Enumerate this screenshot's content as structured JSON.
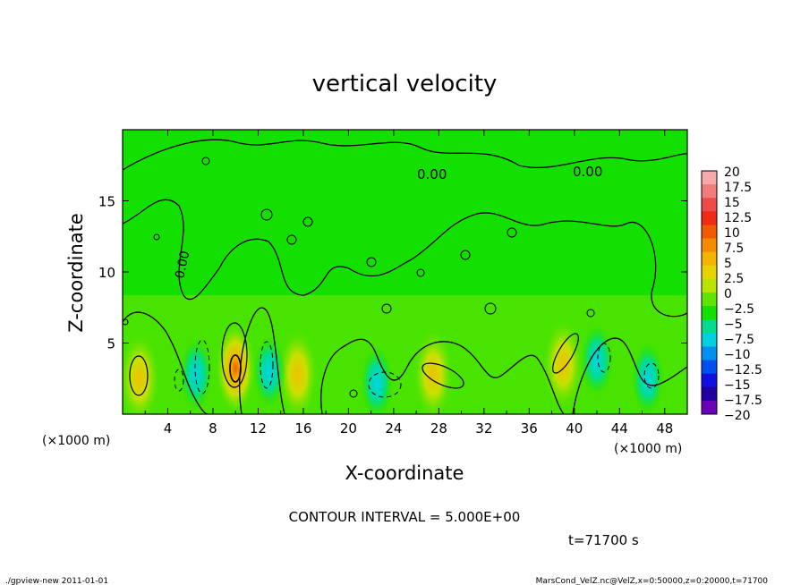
{
  "chart_data": {
    "type": "heatmap",
    "title": "vertical velocity",
    "xlabel": "X-coordinate",
    "ylabel": "Z-coordinate",
    "x_unit_left": "(×1000 m)",
    "x_unit_right": "(×1000 m)",
    "xlim": [
      0,
      50
    ],
    "ylim": [
      0,
      20
    ],
    "x_ticks": [
      4,
      8,
      12,
      16,
      20,
      24,
      28,
      32,
      36,
      40,
      44,
      48
    ],
    "y_ticks": [
      5,
      10,
      15
    ],
    "colorbar_labels": [
      "20",
      "17.5",
      "15",
      "12.5",
      "10",
      "7.5",
      "5",
      "2.5",
      "0",
      "−2.5",
      "−5",
      "−7.5",
      "−10",
      "−12.5",
      "−15",
      "−17.5",
      "−20"
    ],
    "colorbar_colors": [
      "#f7a8a8",
      "#f27b7b",
      "#ee4a4a",
      "#f02a14",
      "#f25a00",
      "#f58c00",
      "#f5b400",
      "#e8d200",
      "#b8e400",
      "#5ee600",
      "#14e000",
      "#00dc8c",
      "#00d0e0",
      "#0090f0",
      "#0050f0",
      "#1010e0",
      "#2000a0",
      "#6a00b8"
    ],
    "contour_labels": [
      "0.00",
      "0.00",
      "0.00"
    ],
    "contour_interval": "CONTOUR INTERVAL = 5.000E+00",
    "time": "t=71700 s",
    "footer_left": "./gpview-new  2011-01-01",
    "footer_right": "MarsCond_VelZ.nc@VelZ,x=0:50000,z=0:20000,t=71700",
    "updraft_cells": [
      {
        "x": 1.5,
        "z": 2.5,
        "value": 7.5
      },
      {
        "x": 10,
        "z": 3.2,
        "value": 12.5
      },
      {
        "x": 15.5,
        "z": 2.8,
        "value": 5
      },
      {
        "x": 27.5,
        "z": 2.8,
        "value": 5
      },
      {
        "x": 39,
        "z": 3.5,
        "value": 7.5
      }
    ],
    "downdraft_cells": [
      {
        "x": 6.5,
        "z": 2.8,
        "value": -7.5
      },
      {
        "x": 13,
        "z": 3,
        "value": -7.5
      },
      {
        "x": 22.5,
        "z": 2.2,
        "value": -5
      },
      {
        "x": 42,
        "z": 3.8,
        "value": -5
      },
      {
        "x": 46.5,
        "z": 2.5,
        "value": -5
      }
    ]
  }
}
